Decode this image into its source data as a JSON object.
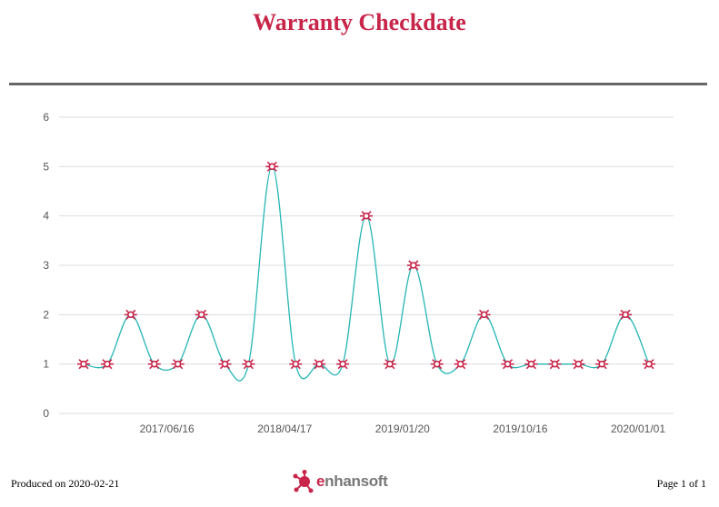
{
  "report": {
    "title": "Warranty Checkdate",
    "produced_on": "Produced on 2020-02-21",
    "page": "Page 1 of 1"
  },
  "logo": {
    "accent_letter": "e",
    "rest": "nhansoft",
    "accent_color": "#c8254a"
  },
  "colors": {
    "title": "#c8254a",
    "line": "#26b5b5",
    "marker": "#c8254a",
    "grid": "#dddddd",
    "axis_text": "#555555"
  },
  "chart_data": {
    "type": "line",
    "title": "",
    "xlabel": "",
    "ylabel": "",
    "ylim": [
      0,
      6
    ],
    "yticks": [
      0,
      1,
      2,
      3,
      4,
      5,
      6
    ],
    "grid": true,
    "smooth": true,
    "x_tick_labels": [
      "2017/06/16",
      "2018/04/17",
      "2019/01/20",
      "2019/10/16",
      "2020/01/01"
    ],
    "series": [
      {
        "values": [
          1,
          1,
          2,
          1,
          1,
          2,
          1,
          1,
          5,
          1,
          1,
          1,
          4,
          1,
          3,
          1,
          1,
          2,
          1,
          1,
          1,
          1,
          1,
          2,
          1
        ]
      }
    ]
  }
}
